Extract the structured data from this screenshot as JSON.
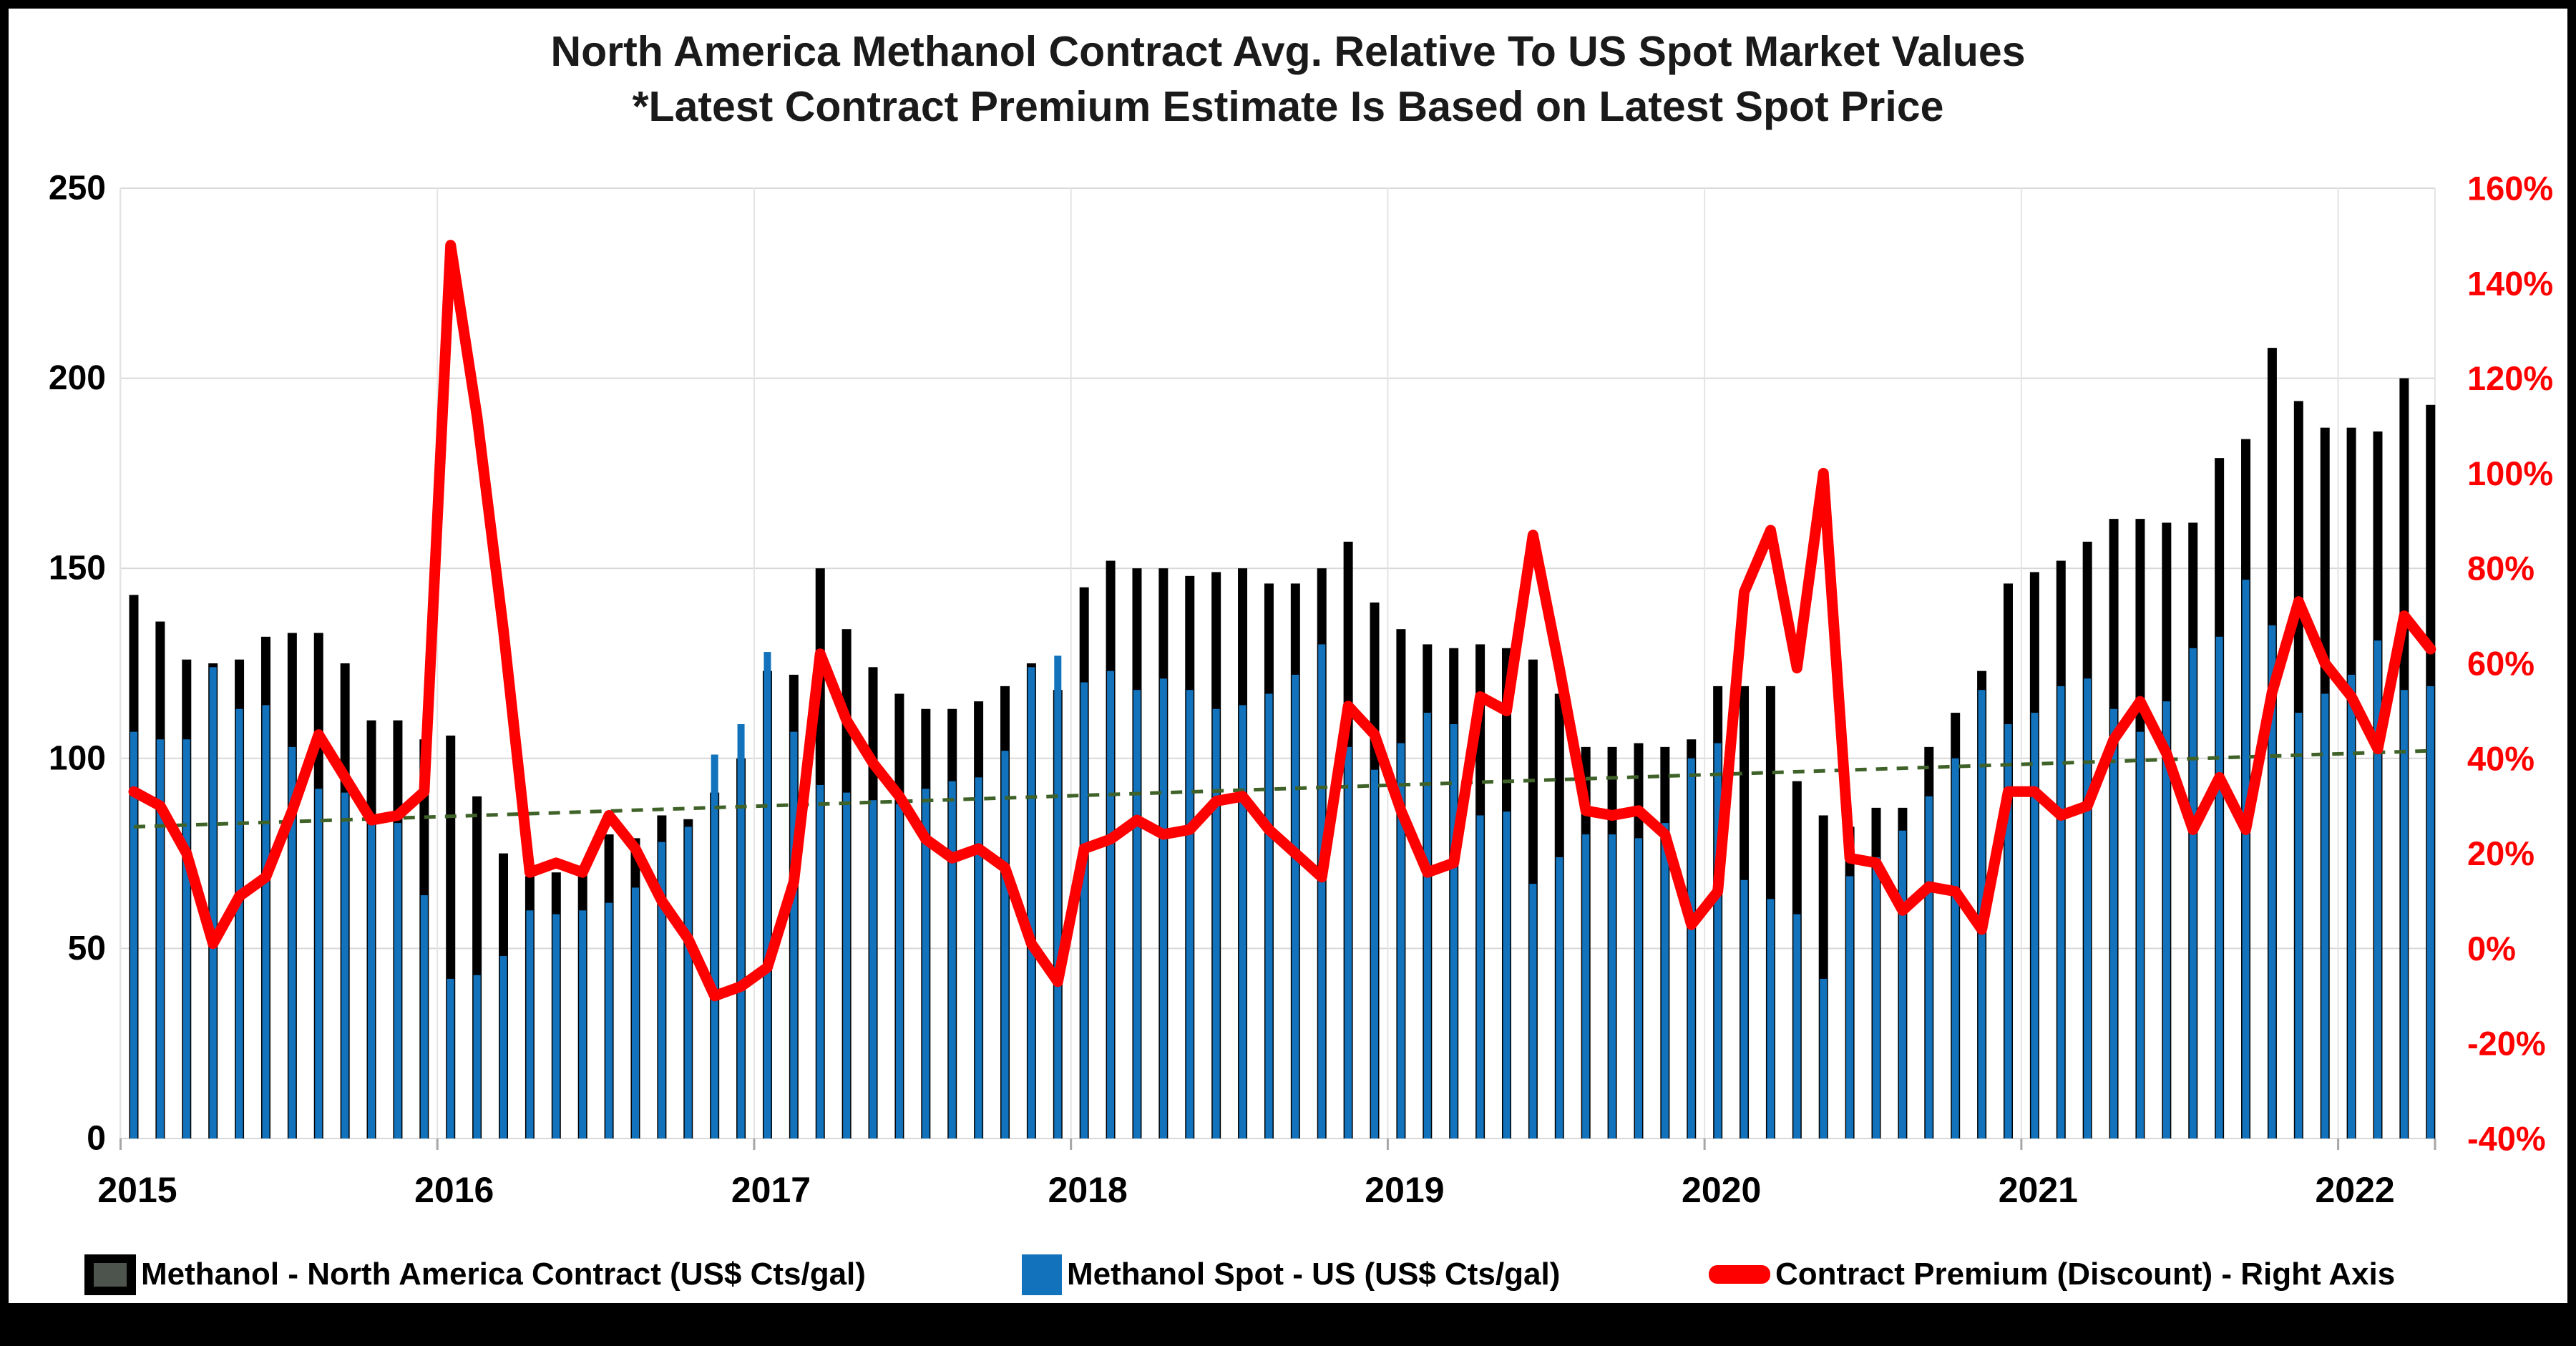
{
  "title_line1": "North America Methanol Contract Avg. Relative To US Spot Market Values",
  "title_line2": "*Latest Contract Premium Estimate Is Based on Latest Spot Price",
  "colors": {
    "contract_bar": "#000000",
    "spot_bar": "#1272BB",
    "premium_line": "#FF0000",
    "trend_line": "#3F6228",
    "gridline": "#D9D9D9",
    "year_gridline": "#E4E4E4",
    "axis_tick": "#A6A6A6",
    "left_axis_text": "#000000",
    "right_axis_text": "#FF0000",
    "x_axis_text": "#000000"
  },
  "chart_data": {
    "type": "bar",
    "subtype": "combo-bar-line",
    "months": [
      "2015-01",
      "2015-02",
      "2015-03",
      "2015-04",
      "2015-05",
      "2015-06",
      "2015-07",
      "2015-08",
      "2015-09",
      "2015-10",
      "2015-11",
      "2015-12",
      "2016-01",
      "2016-02",
      "2016-03",
      "2016-04",
      "2016-05",
      "2016-06",
      "2016-07",
      "2016-08",
      "2016-09",
      "2016-10",
      "2016-11",
      "2016-12",
      "2017-01",
      "2017-02",
      "2017-03",
      "2017-04",
      "2017-05",
      "2017-06",
      "2017-07",
      "2017-08",
      "2017-09",
      "2017-10",
      "2017-11",
      "2017-12",
      "2018-01",
      "2018-02",
      "2018-03",
      "2018-04",
      "2018-05",
      "2018-06",
      "2018-07",
      "2018-08",
      "2018-09",
      "2018-10",
      "2018-11",
      "2018-12",
      "2019-01",
      "2019-02",
      "2019-03",
      "2019-04",
      "2019-05",
      "2019-06",
      "2019-07",
      "2019-08",
      "2019-09",
      "2019-10",
      "2019-11",
      "2019-12",
      "2020-01",
      "2020-02",
      "2020-03",
      "2020-04",
      "2020-05",
      "2020-06",
      "2020-07",
      "2020-08",
      "2020-09",
      "2020-10",
      "2020-11",
      "2020-12",
      "2021-01",
      "2021-02",
      "2021-03",
      "2021-04",
      "2021-05",
      "2021-06",
      "2021-07",
      "2021-08",
      "2021-09",
      "2021-10",
      "2021-11",
      "2021-12",
      "2022-01",
      "2022-02",
      "2022-03",
      "2022-04"
    ],
    "series": [
      {
        "name": "Methanol - North America Contract (US$ Cts/gal)",
        "type": "bar",
        "axis": "left",
        "color": "#000000",
        "values": [
          143,
          136,
          126,
          125,
          126,
          132,
          133,
          133,
          125,
          110,
          110,
          105,
          106,
          90,
          75,
          69,
          70,
          70,
          80,
          79,
          85,
          84,
          91,
          100,
          123,
          122,
          150,
          134,
          124,
          117,
          113,
          113,
          115,
          119,
          125,
          118,
          145,
          152,
          150,
          150,
          148,
          149,
          150,
          146,
          146,
          150,
          157,
          141,
          134,
          130,
          129,
          130,
          129,
          126,
          117,
          103,
          103,
          104,
          103,
          105,
          119,
          119,
          119,
          94,
          85,
          82,
          87,
          87,
          103,
          112,
          123,
          146,
          149,
          152,
          157,
          163,
          163,
          162,
          162,
          179,
          184,
          208,
          194,
          187,
          187,
          186,
          200,
          193
        ]
      },
      {
        "name": "Methanol Spot - US (US$ Cts/gal)",
        "type": "bar",
        "axis": "left",
        "color": "#1272BB",
        "values": [
          107,
          105,
          105,
          124,
          113,
          114,
          103,
          92,
          91,
          85,
          83,
          64,
          42,
          43,
          48,
          60,
          59,
          60,
          62,
          66,
          78,
          82,
          101,
          109,
          128,
          107,
          93,
          91,
          89,
          88,
          92,
          94,
          95,
          102,
          124,
          127,
          120,
          123,
          118,
          121,
          118,
          113,
          114,
          117,
          122,
          130,
          103,
          97,
          104,
          112,
          109,
          85,
          86,
          67,
          74,
          80,
          80,
          79,
          83,
          100,
          104,
          68,
          63,
          59,
          42,
          69,
          74,
          81,
          90,
          100,
          118,
          109,
          112,
          119,
          121,
          113,
          107,
          115,
          129,
          132,
          147,
          135,
          112,
          117,
          122,
          131,
          118,
          119
        ]
      },
      {
        "name": "Contract Premium (Discount) - Right Axis",
        "type": "line",
        "axis": "right",
        "unit": "%",
        "color": "#FF0000",
        "values": [
          33,
          30,
          20,
          1,
          11,
          15,
          29,
          45,
          36,
          27,
          28,
          33,
          148,
          112,
          67,
          16,
          18,
          16,
          28,
          21,
          10,
          2,
          -10,
          -8,
          -4,
          14,
          62,
          48,
          39,
          32,
          23,
          19,
          21,
          17,
          1,
          -7,
          21,
          23,
          27,
          24,
          25,
          31,
          32,
          25,
          20,
          15,
          51,
          45,
          29,
          16,
          18,
          53,
          50,
          87,
          59,
          29,
          28,
          29,
          24,
          5,
          12,
          75,
          88,
          59,
          100,
          19,
          18,
          8,
          13,
          12,
          4,
          33,
          33,
          28,
          30,
          44,
          52,
          41,
          25,
          36,
          25,
          54,
          73,
          60,
          53,
          42,
          70,
          63
        ]
      }
    ],
    "trendline": {
      "name": "linear-trend-dashed",
      "color": "#3F6228",
      "style": "dashed",
      "start_value": 82,
      "end_value": 102
    },
    "left_axis": {
      "min": 0,
      "max": 250,
      "ticks": [
        "250",
        "200",
        "150",
        "100",
        "50",
        "0"
      ]
    },
    "right_axis": {
      "min": -40,
      "max": 160,
      "ticks": [
        "160%",
        "140%",
        "120%",
        "100%",
        "80%",
        "60%",
        "40%",
        "20%",
        "0%",
        "-20%",
        "-40%"
      ]
    },
    "x_axis": {
      "year_labels": [
        "2015",
        "2016",
        "2017",
        "2018",
        "2019",
        "2020",
        "2021",
        "2022"
      ]
    },
    "grid": "horizontal-and-year-boundaries",
    "legend_position": "bottom"
  },
  "legend": {
    "items": [
      {
        "label": "Methanol - North America Contract (US$ Cts/gal)"
      },
      {
        "label": "Methanol Spot - US (US$ Cts/gal)"
      },
      {
        "label": "Contract Premium (Discount) - Right Axis"
      }
    ]
  }
}
